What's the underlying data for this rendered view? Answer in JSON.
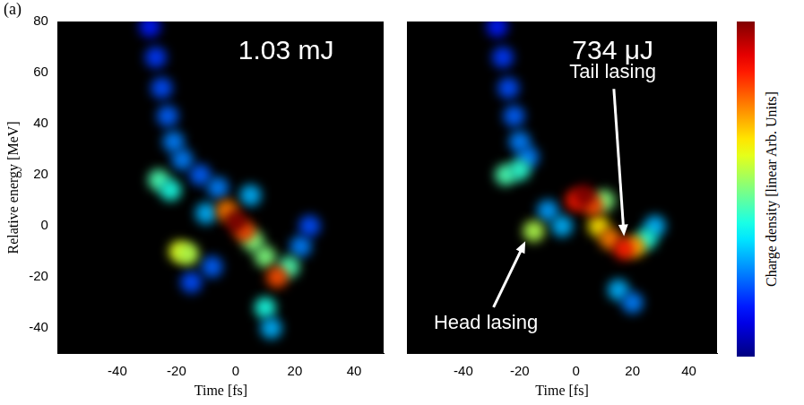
{
  "label": "(a)",
  "colorbar": {
    "label": "Charge density [linear Arb. Units]",
    "range": [
      0,
      1
    ]
  },
  "chart_data": [
    {
      "type": "scatter",
      "x_label": "Time [fs]",
      "y_label": "Relative energy [MeV]",
      "xlim": [
        -60,
        50
      ],
      "xticks": [
        -40,
        -20,
        0,
        20,
        40
      ],
      "ylim": [
        -50,
        80
      ],
      "yticks": [
        -40,
        -20,
        0,
        20,
        40,
        60,
        80
      ],
      "grid": false,
      "points": {
        "x": [
          -29,
          -27,
          -25,
          -23,
          -21,
          -18,
          -12,
          -6,
          -15,
          -8,
          22,
          25,
          -10,
          5,
          10,
          12,
          -26,
          -22,
          -19,
          -16,
          6,
          10,
          18,
          -3,
          3,
          14,
          0
        ],
        "y": [
          78,
          66,
          54,
          43,
          33,
          26,
          20,
          15,
          -22,
          -16,
          -8,
          0,
          5,
          12,
          -32,
          -40,
          18,
          14,
          -10,
          -11,
          -6,
          -12,
          -16,
          6,
          -2,
          -20,
          2
        ],
        "density": [
          0.15,
          0.18,
          0.2,
          0.22,
          0.25,
          0.25,
          0.22,
          0.25,
          0.2,
          0.22,
          0.25,
          0.2,
          0.3,
          0.3,
          0.4,
          0.3,
          0.45,
          0.4,
          0.6,
          0.55,
          0.5,
          0.5,
          0.45,
          0.75,
          0.8,
          0.8,
          1.0
        ]
      },
      "annotations": [
        {
          "text": "1.03 mJ",
          "x": 17,
          "y": 68
        }
      ]
    },
    {
      "type": "scatter",
      "x_label": "Time [fs]",
      "xlim": [
        -60,
        50
      ],
      "xticks": [
        -40,
        -20,
        0,
        20,
        40
      ],
      "ylim": [
        -50,
        80
      ],
      "grid": false,
      "tick_labels": "x",
      "points": {
        "x": [
          -28,
          -26,
          -24,
          -22,
          -20,
          -17,
          -10,
          -5,
          15,
          20,
          28,
          25,
          -25,
          -20,
          10,
          -15,
          8,
          21,
          12,
          6,
          0,
          17,
          3
        ],
        "y": [
          78,
          66,
          54,
          43,
          33,
          27,
          6,
          0,
          -25,
          -30,
          0,
          -5,
          20,
          22,
          10,
          -2,
          0,
          -8,
          -5,
          8,
          10,
          -9,
          12
        ],
        "density": [
          0.15,
          0.18,
          0.2,
          0.22,
          0.25,
          0.25,
          0.28,
          0.3,
          0.3,
          0.25,
          0.3,
          0.4,
          0.45,
          0.42,
          0.5,
          0.55,
          0.65,
          0.7,
          0.75,
          0.8,
          0.85,
          0.85,
          1.0
        ]
      },
      "annotations": [
        {
          "text": "734 μJ",
          "x": 13,
          "y": 68
        },
        {
          "text": "Tail lasing",
          "x": 13,
          "y": 60,
          "points_to": [
            17,
            -4
          ]
        },
        {
          "text": "Head lasing",
          "x": -32,
          "y": -38,
          "points_to": [
            -18,
            -6
          ]
        }
      ]
    }
  ]
}
